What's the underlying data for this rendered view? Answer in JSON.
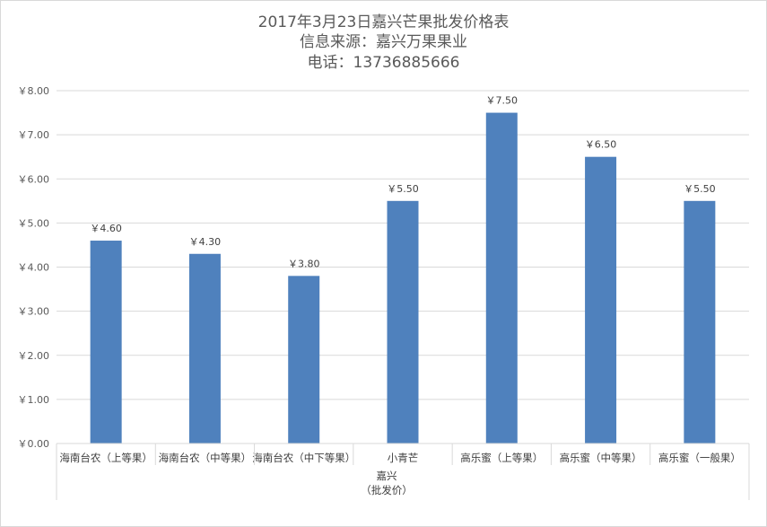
{
  "chart_data": {
    "type": "bar",
    "title": [
      "2017年3月23日嘉兴芒果批发价格表",
      "信息来源：嘉兴万果果业",
      "电话：13736885666"
    ],
    "categories": [
      "海南台农（上等果）",
      "海南台农（中等果）",
      "海南台农（中下等果）",
      "小青芒",
      "高乐蜜（上等果）",
      "高乐蜜（中等果）",
      "高乐蜜（一般果）"
    ],
    "values": [
      4.6,
      4.3,
      3.8,
      5.5,
      7.5,
      6.5,
      5.5
    ],
    "data_labels": [
      "￥4.60",
      "￥4.30",
      "￥3.80",
      "￥5.50",
      "￥7.50",
      "￥6.50",
      "￥5.50"
    ],
    "y_ticks": [
      "￥0.00",
      "￥1.00",
      "￥2.00",
      "￥3.00",
      "￥4.00",
      "￥5.00",
      "￥6.00",
      "￥7.00",
      "￥8.00"
    ],
    "ylim": [
      0,
      8
    ],
    "group_label": [
      "嘉兴",
      "（批发价）"
    ],
    "grid": true,
    "bar_color": "#4f81bd",
    "grid_color": "#d9d9d9"
  }
}
